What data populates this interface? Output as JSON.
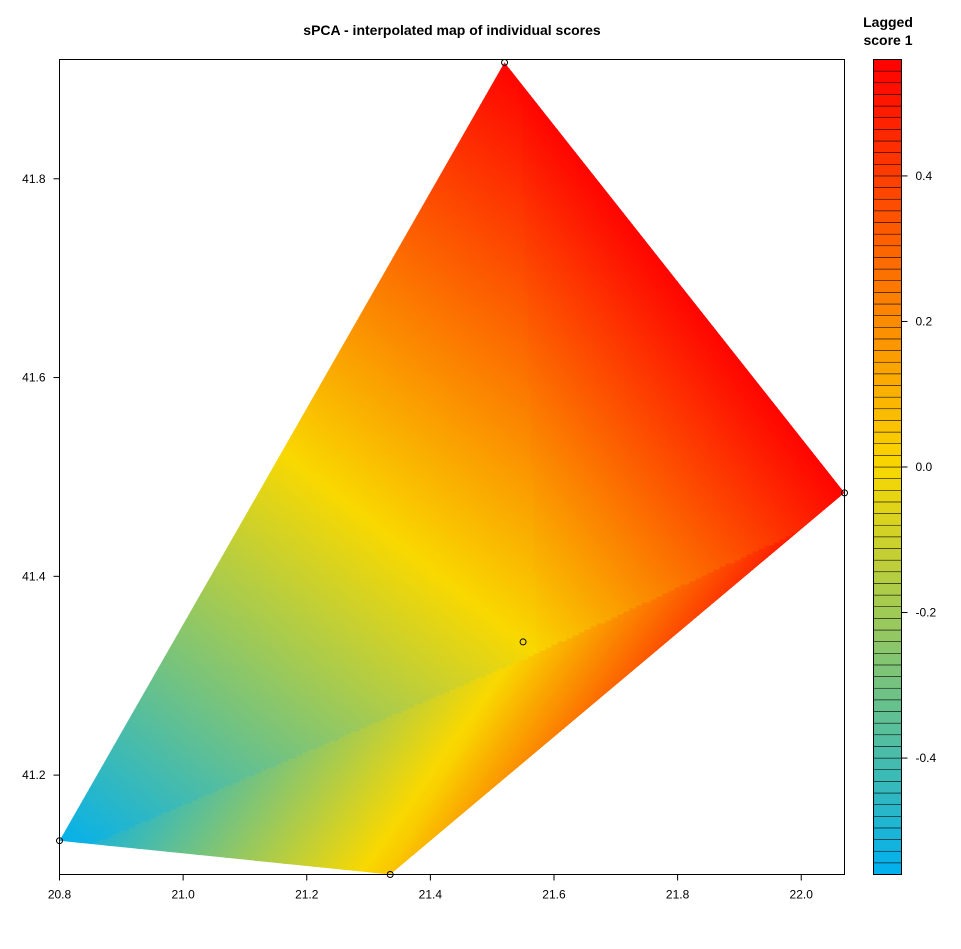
{
  "chart_data": {
    "type": "heatmap",
    "title": "sPCA - interpolated map of individual scores",
    "xlabel": "",
    "ylabel": "",
    "xlim": [
      20.8,
      22.07
    ],
    "ylim": [
      41.1,
      41.92
    ],
    "x_ticks": [
      "20.8",
      "21.0",
      "21.2",
      "21.4",
      "21.6",
      "21.8",
      "22.0"
    ],
    "y_ticks": [
      "41.2",
      "41.4",
      "41.6",
      "41.8"
    ],
    "x_tick_values": [
      20.8,
      21.0,
      21.2,
      21.4,
      21.6,
      21.8,
      22.0
    ],
    "y_tick_values": [
      41.2,
      41.4,
      41.6,
      41.8
    ],
    "points": [
      {
        "x": 20.8,
        "y": 41.134,
        "score": -0.55
      },
      {
        "x": 21.52,
        "y": 41.917,
        "score": 0.55
      },
      {
        "x": 21.335,
        "y": 41.1,
        "score": 0.05
      },
      {
        "x": 22.07,
        "y": 41.484,
        "score": 0.55
      },
      {
        "x": 21.55,
        "y": 41.334,
        "score": 0.0
      }
    ],
    "colorbar": {
      "title_line1": "Lagged",
      "title_line2": "score 1",
      "range": [
        -0.56,
        0.56
      ],
      "ticks": [
        "-0.4",
        "-0.2",
        "0.0",
        "0.2",
        "0.4"
      ],
      "tick_values": [
        -0.4,
        -0.2,
        0.0,
        0.2,
        0.4
      ],
      "colors": [
        "#00b0f0",
        "#f9d800",
        "#ff0000"
      ],
      "bins": 70
    },
    "grid": false,
    "legend_position": "right"
  }
}
